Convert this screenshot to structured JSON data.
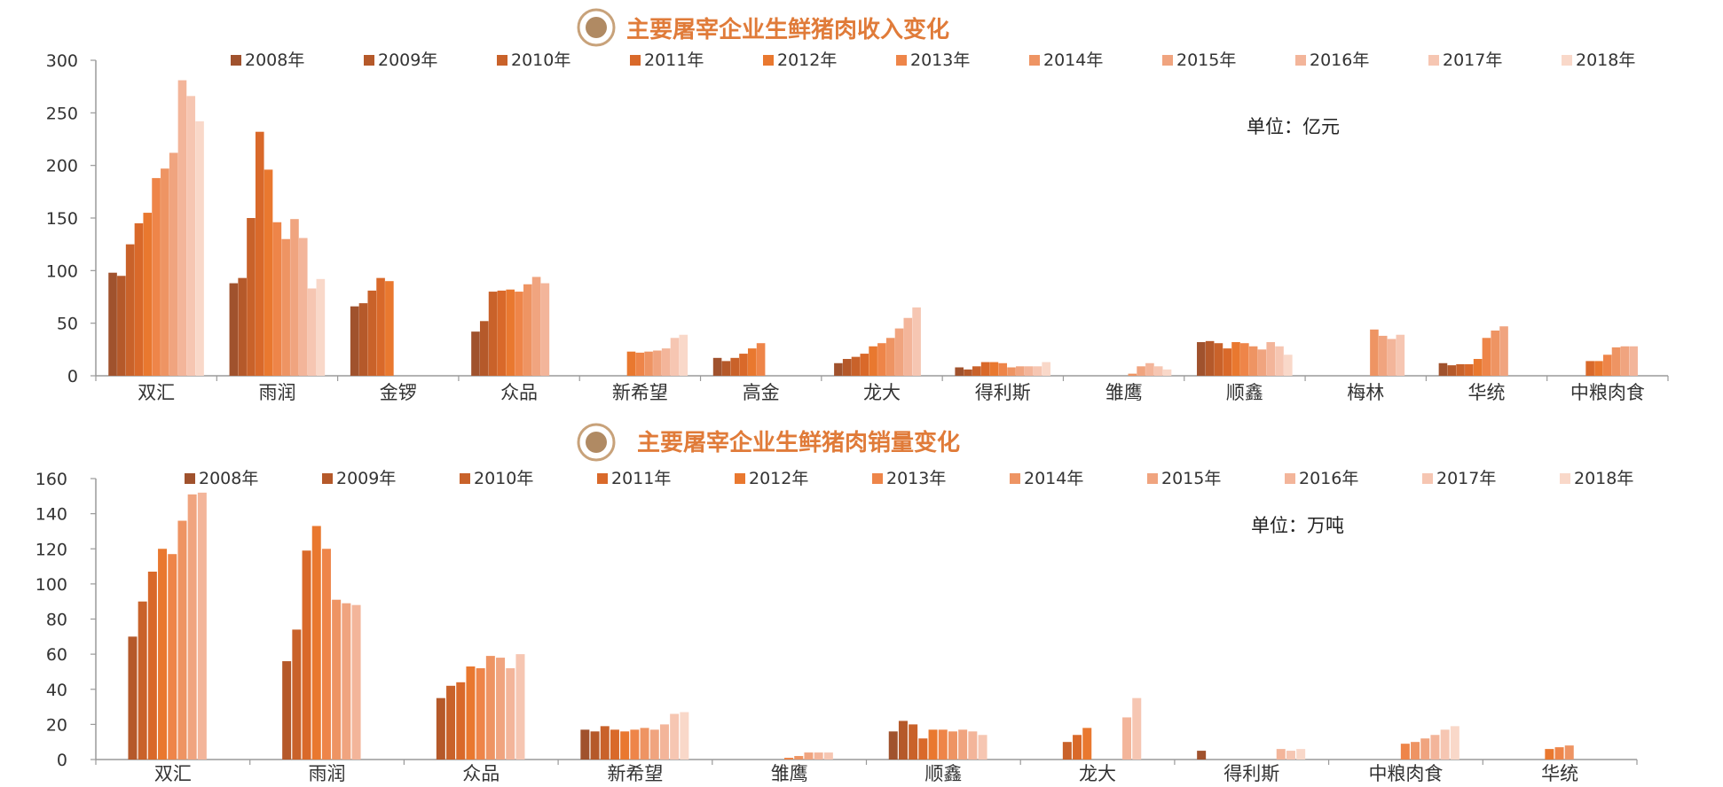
{
  "colors": {
    "series": [
      "#A0522D",
      "#B5592A",
      "#C9622A",
      "#D9692A",
      "#E9782F",
      "#EE8549",
      "#EE9463",
      "#F0A47F",
      "#F3B59A",
      "#F6C6B2",
      "#F9D8C9"
    ],
    "title": "#E07B39",
    "badge_ring": "#C8A27A",
    "badge_fill": "#B08A63",
    "axis": "#9A9A9A",
    "text": "#333333"
  },
  "charts": [
    {
      "id": "revenue",
      "title": "主要屠宰企业生鲜猪肉收入变化",
      "unit_label": "单位：亿元"
    },
    {
      "id": "volume",
      "title": "主要屠宰企业生鲜猪肉销量变化",
      "unit_label": "单位：万吨"
    }
  ],
  "chart_data": [
    {
      "type": "bar",
      "title": "主要屠宰企业生鲜猪肉收入变化",
      "unit": "单位：亿元",
      "ylim": [
        0,
        300
      ],
      "yticks": [
        0,
        50,
        100,
        150,
        200,
        250,
        300
      ],
      "legend_position": "top",
      "categories": [
        "双汇",
        "雨润",
        "金锣",
        "众品",
        "新希望",
        "高金",
        "龙大",
        "得利斯",
        "雏鹰",
        "顺鑫",
        "梅林",
        "华统",
        "中粮肉食"
      ],
      "series": [
        {
          "name": "2008年",
          "values": [
            98,
            88,
            66,
            42,
            null,
            17,
            12,
            8,
            null,
            32,
            null,
            12,
            null
          ]
        },
        {
          "name": "2009年",
          "values": [
            95,
            93,
            69,
            52,
            null,
            14,
            16,
            6,
            null,
            33,
            null,
            10,
            null
          ]
        },
        {
          "name": "2010年",
          "values": [
            125,
            150,
            81,
            80,
            null,
            17,
            18,
            9,
            null,
            31,
            null,
            11,
            null
          ]
        },
        {
          "name": "2011年",
          "values": [
            145,
            232,
            93,
            81,
            null,
            21,
            21,
            13,
            null,
            26,
            null,
            11,
            14
          ]
        },
        {
          "name": "2012年",
          "values": [
            155,
            196,
            90,
            82,
            23,
            26,
            28,
            13,
            null,
            32,
            null,
            16,
            14
          ]
        },
        {
          "name": "2013年",
          "values": [
            188,
            146,
            null,
            80,
            22,
            31,
            31,
            12,
            null,
            31,
            null,
            36,
            20
          ]
        },
        {
          "name": "2014年",
          "values": [
            197,
            130,
            null,
            87,
            23,
            null,
            36,
            8,
            2,
            28,
            44,
            43,
            27
          ]
        },
        {
          "name": "2015年",
          "values": [
            212,
            149,
            null,
            94,
            24,
            null,
            45,
            9,
            9,
            25,
            38,
            47,
            28
          ]
        },
        {
          "name": "2016年",
          "values": [
            281,
            131,
            null,
            88,
            26,
            null,
            55,
            9,
            12,
            32,
            35,
            null,
            28
          ]
        },
        {
          "name": "2017年",
          "values": [
            266,
            83,
            null,
            null,
            36,
            null,
            65,
            9,
            9,
            28,
            39,
            null,
            null
          ]
        },
        {
          "name": "2018年",
          "values": [
            242,
            92,
            null,
            null,
            39,
            null,
            null,
            13,
            6,
            20,
            null,
            null,
            null
          ]
        }
      ],
      "extra_series_values_note": ""
    },
    {
      "type": "bar",
      "title": "主要屠宰企业生鲜猪肉销量变化",
      "unit": "单位：万吨",
      "ylim": [
        0,
        160
      ],
      "yticks": [
        0,
        20,
        40,
        60,
        80,
        100,
        120,
        140,
        160
      ],
      "legend_position": "top",
      "categories": [
        "双汇",
        "雨润",
        "众品",
        "新希望",
        "雏鹰",
        "顺鑫",
        "龙大",
        "得利斯",
        "中粮肉食",
        "华统"
      ],
      "series": [
        {
          "name": "2008年",
          "values": [
            null,
            null,
            null,
            17,
            null,
            16,
            null,
            5,
            null,
            null
          ]
        },
        {
          "name": "2009年",
          "values": [
            70,
            56,
            35,
            16,
            null,
            22,
            null,
            null,
            null,
            null
          ]
        },
        {
          "name": "2010年",
          "values": [
            90,
            74,
            42,
            19,
            null,
            20,
            10,
            null,
            null,
            null
          ]
        },
        {
          "name": "2011年",
          "values": [
            107,
            119,
            44,
            17,
            null,
            12,
            14,
            null,
            null,
            null
          ]
        },
        {
          "name": "2012年",
          "values": [
            120,
            133,
            53,
            16,
            null,
            17,
            18,
            null,
            null,
            6
          ]
        },
        {
          "name": "2013年",
          "values": [
            117,
            120,
            52,
            17,
            1,
            17,
            null,
            null,
            9,
            7
          ]
        },
        {
          "name": "2014年",
          "values": [
            136,
            91,
            59,
            18,
            2,
            16,
            null,
            null,
            10,
            8
          ]
        },
        {
          "name": "2015年",
          "values": [
            151,
            89,
            58,
            17,
            4,
            17,
            null,
            null,
            12,
            null
          ]
        },
        {
          "name": "2016年",
          "values": [
            152,
            88,
            52,
            20,
            4,
            16,
            24,
            6,
            14,
            null
          ]
        },
        {
          "name": "2017年",
          "values": [
            null,
            null,
            60,
            26,
            4,
            14,
            35,
            5,
            17,
            null
          ]
        },
        {
          "name": "2018年",
          "values": [
            null,
            null,
            null,
            27,
            null,
            null,
            null,
            6,
            19,
            null
          ]
        }
      ]
    }
  ]
}
